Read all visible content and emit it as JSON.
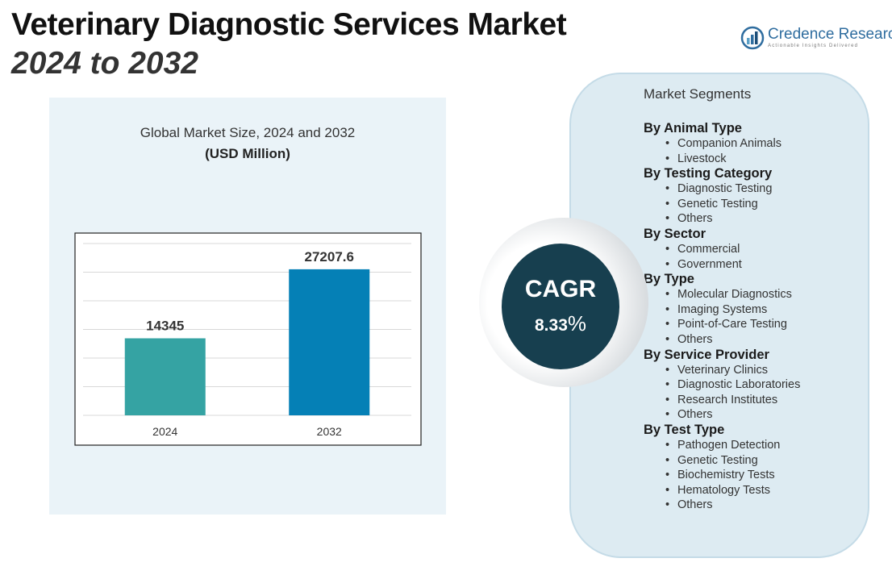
{
  "header": {
    "title": "Veterinary Diagnostic Services Market",
    "subtitle": "2024 to 2032"
  },
  "logo": {
    "name": "Credence Research",
    "tagline": "Actionable Insights Delivered",
    "color": "#2f6d9f"
  },
  "chart_data": {
    "type": "bar",
    "title": "Global Market Size, 2024 and 2032",
    "unit_label": "(USD Million)",
    "categories": [
      "2024",
      "2032"
    ],
    "values": [
      14345,
      27207.6
    ],
    "value_labels": [
      "14345",
      "27207.6"
    ],
    "colors": [
      "#35a3a3",
      "#0580b6"
    ],
    "ylim": [
      0,
      32000
    ],
    "grid": true,
    "xlabel": "",
    "ylabel": ""
  },
  "cagr": {
    "label": "CAGR",
    "value": "8.33",
    "percent_sign": "%"
  },
  "segments": {
    "heading": "Market Segments",
    "groups": [
      {
        "title": "By Animal Type",
        "items": [
          "Companion Animals",
          "Livestock"
        ]
      },
      {
        "title": "By Testing Category",
        "items": [
          "Diagnostic Testing",
          "Genetic Testing",
          "Others"
        ]
      },
      {
        "title": "By Sector",
        "items": [
          "Commercial",
          "Government"
        ]
      },
      {
        "title": "By Type",
        "items": [
          "Molecular Diagnostics",
          "Imaging Systems",
          "Point-of-Care Testing",
          "Others"
        ]
      },
      {
        "title": "By Service Provider",
        "items": [
          "Veterinary Clinics",
          "Diagnostic Laboratories",
          "Research Institutes",
          "Others"
        ]
      },
      {
        "title": "By Test Type",
        "items": [
          "Pathogen Detection",
          "Genetic Testing",
          "Biochemistry Tests",
          "Hematology Tests",
          "Others"
        ]
      }
    ]
  }
}
